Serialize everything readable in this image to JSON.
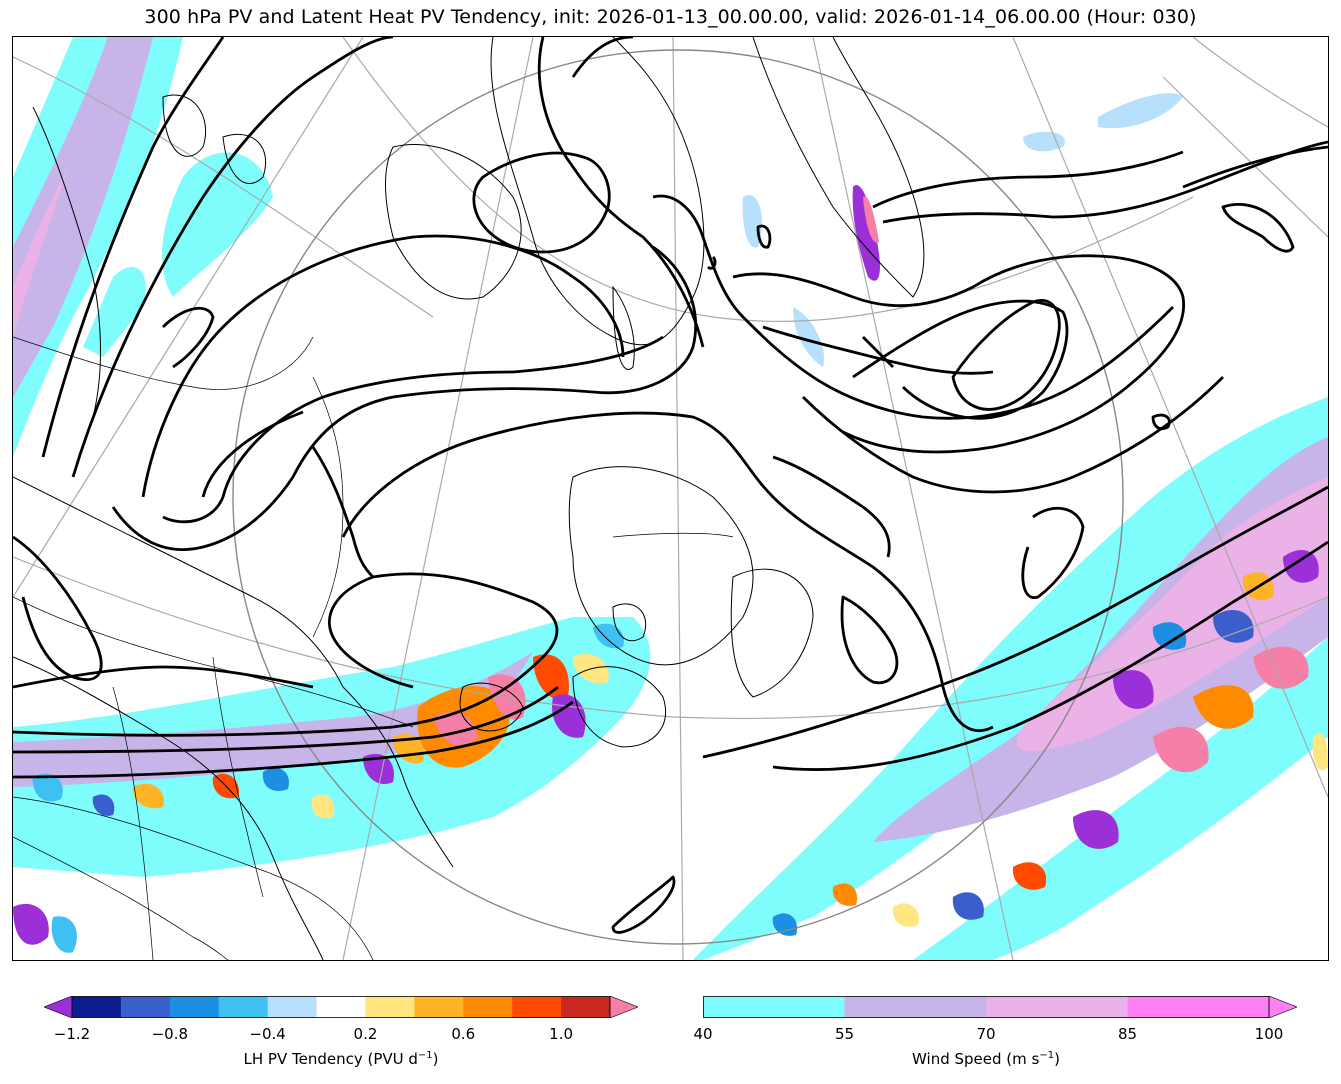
{
  "title": "300 hPa PV and Latent Heat PV Tendency, init: 2026-01-13_00.00.00, valid: 2026-01-14_06.00.00 (Hour: 030)",
  "colorbar_lh": {
    "label": "LH PV Tendency (PVU d",
    "label_sup": "−1",
    "label_end": ")",
    "ticks": [
      "−1.2",
      "−0.8",
      "−0.4",
      "0.2",
      "0.6",
      "1.0"
    ],
    "levels": [
      -1.2,
      -1.0,
      -0.8,
      -0.6,
      -0.4,
      -0.2,
      0.2,
      0.4,
      0.6,
      0.8,
      1.0,
      1.2
    ],
    "colors": [
      "#0c1c8f",
      "#3a5fcd",
      "#1c8fe3",
      "#3fc0f2",
      "#b6e0fb",
      "#ffffff",
      "#ffe680",
      "#ffb428",
      "#ff8a00",
      "#ff4a00",
      "#c8281e"
    ],
    "under_color": "#9b30d9",
    "over_color": "#f57fa6"
  },
  "colorbar_wind": {
    "label": "Wind Speed (m s",
    "label_sup": "−1",
    "label_end": ")",
    "ticks": [
      "40",
      "55",
      "70",
      "85",
      "100"
    ],
    "levels": [
      40,
      55,
      70,
      85,
      100
    ],
    "colors": [
      "#7ffcfc",
      "#c7b4e8",
      "#ebb2e8",
      "#ff7ff5"
    ],
    "over_color": "#ff7ff5"
  }
}
